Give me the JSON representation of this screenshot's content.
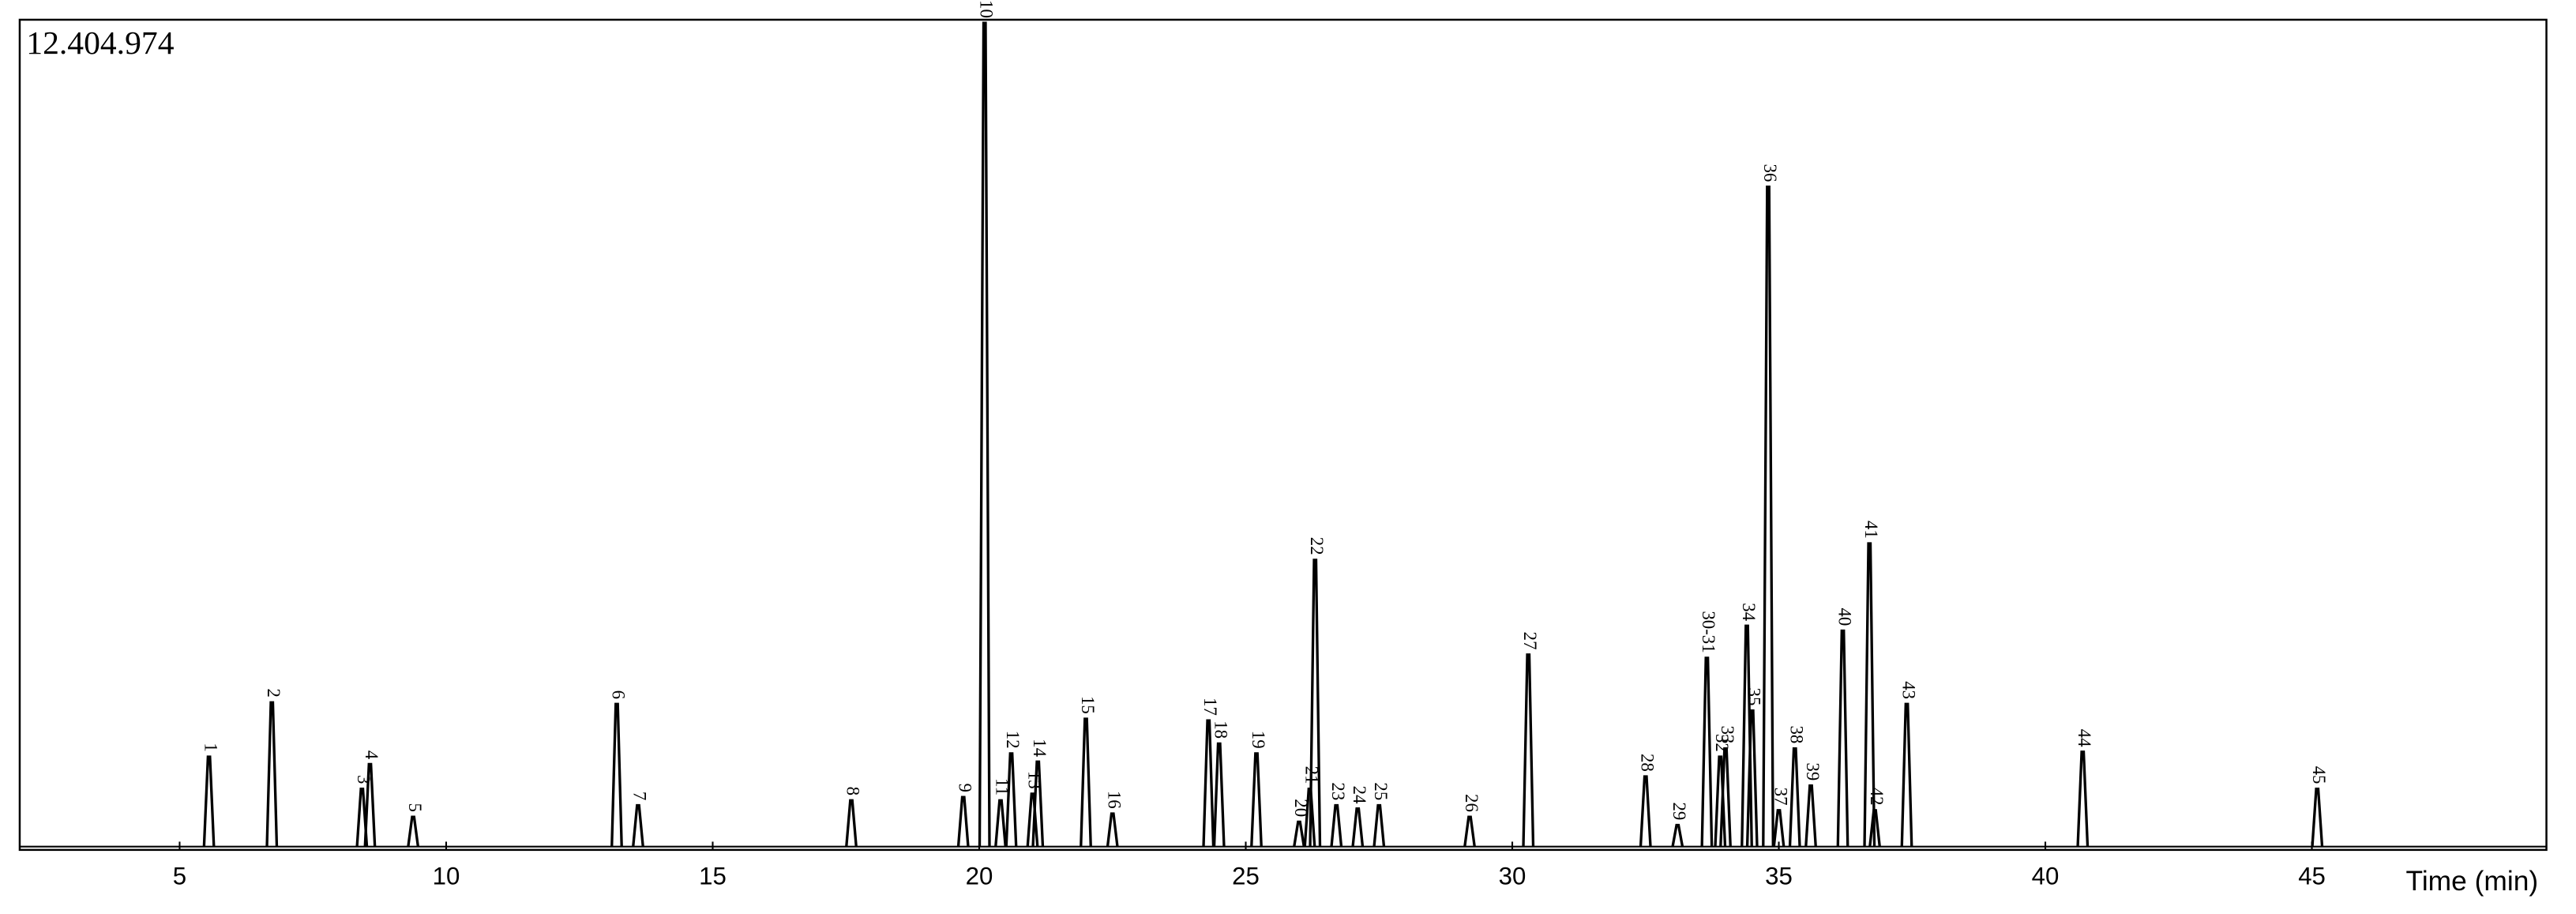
{
  "chart_data": {
    "type": "chromatogram",
    "scale_label": "12.404.974",
    "x_label": "Time (min)",
    "xlim": [
      2,
      49.4
    ],
    "xticks": [
      5,
      10,
      15,
      20,
      25,
      30,
      35,
      40,
      45
    ],
    "ylim": [
      0,
      100
    ],
    "color": "#000000",
    "peaks": [
      {
        "label": "1",
        "x": 5.55,
        "height": 10.9
      },
      {
        "label": "2",
        "x": 6.73,
        "height": 17.5
      },
      {
        "label": "3",
        "x": 8.42,
        "height": 7
      },
      {
        "label": "4",
        "x": 8.57,
        "height": 10
      },
      {
        "label": "5",
        "x": 9.38,
        "height": 3.6
      },
      {
        "label": "6",
        "x": 13.2,
        "height": 17.3
      },
      {
        "label": "7",
        "x": 13.6,
        "height": 5
      },
      {
        "label": "8",
        "x": 17.6,
        "height": 5.6
      },
      {
        "label": "9",
        "x": 19.7,
        "height": 6
      },
      {
        "label": "10",
        "x": 20.1,
        "height": 100
      },
      {
        "label": "11",
        "x": 20.4,
        "height": 5.6
      },
      {
        "label": "12",
        "x": 20.6,
        "height": 11.3
      },
      {
        "label": "13",
        "x": 21.0,
        "height": 6.4
      },
      {
        "label": "14",
        "x": 21.1,
        "height": 10.3
      },
      {
        "label": "15",
        "x": 22.0,
        "height": 15.5
      },
      {
        "label": "16",
        "x": 22.5,
        "height": 4
      },
      {
        "label": "17",
        "x": 24.3,
        "height": 15.3
      },
      {
        "label": "18",
        "x": 24.5,
        "height": 12.5
      },
      {
        "label": "19",
        "x": 25.2,
        "height": 11.3
      },
      {
        "label": "20",
        "x": 26.0,
        "height": 3
      },
      {
        "label": "21",
        "x": 26.2,
        "height": 7
      },
      {
        "label": "22",
        "x": 26.3,
        "height": 34.8
      },
      {
        "label": "23",
        "x": 26.7,
        "height": 5
      },
      {
        "label": "24",
        "x": 27.1,
        "height": 4.6
      },
      {
        "label": "25",
        "x": 27.5,
        "height": 5
      },
      {
        "label": "26",
        "x": 29.2,
        "height": 3.6
      },
      {
        "label": "27",
        "x": 30.3,
        "height": 23.3
      },
      {
        "label": "28",
        "x": 32.5,
        "height": 8.5
      },
      {
        "label": "29",
        "x": 33.1,
        "height": 2.6
      },
      {
        "label": "30-31",
        "x": 33.65,
        "height": 22.9
      },
      {
        "label": "32",
        "x": 33.9,
        "height": 10.9
      },
      {
        "label": "33",
        "x": 34.0,
        "height": 11.9
      },
      {
        "label": "34",
        "x": 34.4,
        "height": 26.8
      },
      {
        "label": "35",
        "x": 34.5,
        "height": 16.5
      },
      {
        "label": "36",
        "x": 34.8,
        "height": 80.1
      },
      {
        "label": "37",
        "x": 35.0,
        "height": 4.4
      },
      {
        "label": "38",
        "x": 35.3,
        "height": 11.9
      },
      {
        "label": "39",
        "x": 35.6,
        "height": 7.4
      },
      {
        "label": "40",
        "x": 36.2,
        "height": 26.2
      },
      {
        "label": "41",
        "x": 36.7,
        "height": 36.8
      },
      {
        "label": "42",
        "x": 36.8,
        "height": 4.4
      },
      {
        "label": "43",
        "x": 37.4,
        "height": 17.3
      },
      {
        "label": "44",
        "x": 40.7,
        "height": 11.5
      },
      {
        "label": "45",
        "x": 45.1,
        "height": 7
      }
    ]
  }
}
